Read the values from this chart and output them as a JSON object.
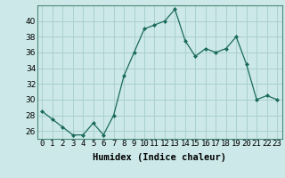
{
  "x": [
    0,
    1,
    2,
    3,
    4,
    5,
    6,
    7,
    8,
    9,
    10,
    11,
    12,
    13,
    14,
    15,
    16,
    17,
    18,
    19,
    20,
    21,
    22,
    23
  ],
  "y": [
    28.5,
    27.5,
    26.5,
    25.5,
    25.5,
    27.0,
    25.5,
    28.0,
    33.0,
    36.0,
    39.0,
    39.5,
    40.0,
    41.5,
    37.5,
    35.5,
    36.5,
    36.0,
    36.5,
    38.0,
    34.5,
    30.0,
    30.5,
    30.0
  ],
  "line_color": "#1a6b5a",
  "marker": "D",
  "marker_size": 2.0,
  "background_color": "#cce8e8",
  "grid_color": "#aad0d0",
  "xlabel": "Humidex (Indice chaleur)",
  "ylim": [
    25,
    42
  ],
  "xlim": [
    -0.5,
    23.5
  ],
  "yticks": [
    26,
    28,
    30,
    32,
    34,
    36,
    38,
    40
  ],
  "xtick_labels": [
    "0",
    "1",
    "2",
    "3",
    "4",
    "5",
    "6",
    "7",
    "8",
    "9",
    "10",
    "11",
    "12",
    "13",
    "14",
    "15",
    "16",
    "17",
    "18",
    "19",
    "20",
    "21",
    "22",
    "23"
  ],
  "xlabel_fontsize": 7.5,
  "tick_fontsize": 6.5
}
